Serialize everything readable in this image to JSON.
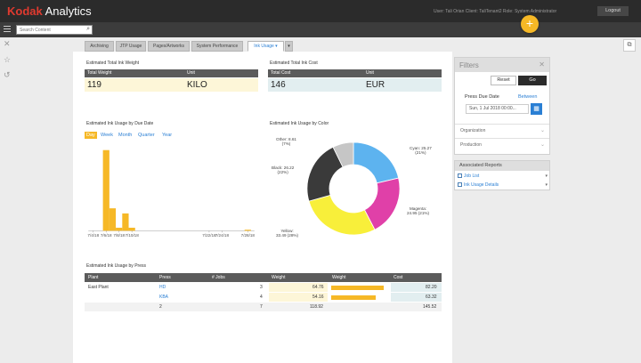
{
  "app": {
    "brand": "Kodak",
    "title": "Analytics"
  },
  "header": {
    "user_info": "User: Tali Orian  Client: TaliTenant2  Role: System Administrator",
    "logout_label": "Logout",
    "add_label": "+",
    "search_placeholder": "Search Content"
  },
  "tabs": [
    {
      "label": "Archiving"
    },
    {
      "label": "JTP Usage"
    },
    {
      "label": "Pages/Artworks"
    },
    {
      "label": "System Performance"
    },
    {
      "label": "Ink Usage ▾",
      "active": true
    }
  ],
  "kpis": {
    "weight": {
      "title": "Estimated Total Ink Weight",
      "col1": "Total Weight",
      "col2": "Unit",
      "value": "119",
      "unit": "KILO",
      "color": "#fdf6d8"
    },
    "cost": {
      "title": "Estimated Total Ink Cost",
      "col1": "Total Cost",
      "col2": "Unit",
      "value": "146",
      "unit": "EUR",
      "color": "#e2eef0"
    }
  },
  "usage_by_date": {
    "title": "Estimated Ink Usage by Due Date",
    "periods": [
      "Day",
      "Week",
      "Month",
      "Quarter",
      "Year"
    ],
    "selected_period": "Day"
  },
  "usage_by_color": {
    "title": "Estimated Ink Usage by Color"
  },
  "chart_data": [
    {
      "type": "bar",
      "x_tick_labels": [
        "7/4/18",
        "7/6/18",
        "7/8/18",
        "7/10/18",
        "7/22/18",
        "7/24/18",
        "7/28/18"
      ],
      "bars": [
        {
          "x": "7/6/18",
          "value": 79
        },
        {
          "x": "7/7/18",
          "value": 22
        },
        {
          "x": "7/8/18",
          "value": 3
        },
        {
          "x": "7/9/18",
          "value": 17
        },
        {
          "x": "7/10/18",
          "value": 3
        },
        {
          "x": "7/28/18",
          "value": 1
        }
      ],
      "ylim": [
        0,
        85
      ],
      "bar_color": "#f6b826",
      "grid": false
    },
    {
      "type": "pie",
      "donut": true,
      "slices": [
        {
          "label": "Cyan",
          "value": 25.27,
          "percent": "21%",
          "color": "#5db3ef"
        },
        {
          "label": "Magenta",
          "value": 24.95,
          "percent": "21%",
          "color": "#e040a8"
        },
        {
          "label": "Yellow",
          "value": 33.49,
          "percent": "28%",
          "color": "#f8ef3a"
        },
        {
          "label": "Black",
          "value": 26.22,
          "percent": "22%",
          "color": "#3a3a3a"
        },
        {
          "label": "Other",
          "value": 8.61,
          "percent": "7%",
          "color": "#c6c6c6"
        }
      ],
      "slice_label_texts": [
        "Cyan: 25.27\n(21%)",
        "Magenta:\n24.95 (21%)",
        "Yellow:\n33.49 (28%)",
        "Black: 26.22\n(22%)",
        "Other: 8.61\n(7%)"
      ]
    }
  ],
  "press_table": {
    "title": "Estimated Ink Usage by Press",
    "headers": [
      "Plant",
      "Press",
      "# Jobs",
      "Weight",
      "Weight",
      "Cost"
    ],
    "rows": [
      {
        "plant": "East Plant",
        "press": "HD",
        "jobs": "3",
        "weight": "64.76",
        "bar": 64.76,
        "cost": "82.20"
      },
      {
        "plant": "",
        "press": "KBA",
        "jobs": "4",
        "weight": "54.16",
        "bar": 54.16,
        "cost": "63.32"
      }
    ],
    "total": {
      "press": "2",
      "jobs": "7",
      "weight": "118.92",
      "cost": "145.52"
    },
    "bar_max": 70
  },
  "filters": {
    "title": "Filters",
    "reset_label": "Reset",
    "go_label": "Go",
    "date_label": "Press Due Date",
    "date_mode": "Between",
    "date_value": "Sun, 1 Jul 2018 00:00...",
    "organization_label": "Organization",
    "production_label": "Production"
  },
  "associated": {
    "title": "Associated Reports",
    "items": [
      "Job List",
      "Ink Usage Details"
    ]
  }
}
